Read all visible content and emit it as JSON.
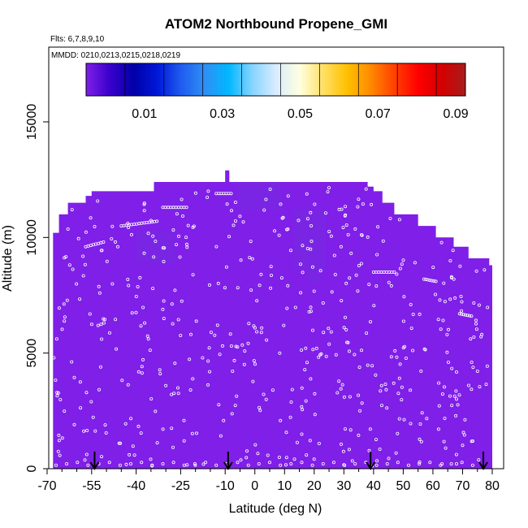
{
  "chart_data": {
    "type": "heatmap",
    "title": "ATOM2 Northbound Propene_GMI",
    "subtitle_flights": "Flts: 6,7,8,9,10",
    "subtitle_dates": "MMDD: 0210,0213,0215,0218,0219",
    "xlabel": "Latitude (deg N)",
    "ylabel": "Altitude (m)",
    "xlim": [
      -70,
      83
    ],
    "ylim": [
      0,
      17500
    ],
    "x_ticks": [
      -70,
      -55,
      -40,
      -25,
      -10,
      0,
      10,
      20,
      30,
      40,
      50,
      60,
      70,
      80
    ],
    "x_minor_ticks": [
      -65,
      -60,
      -50,
      -45,
      -35,
      -30,
      -20,
      -15,
      -5,
      5,
      15,
      25,
      35,
      45,
      55,
      65,
      75
    ],
    "y_ticks": [
      0,
      5000,
      10000,
      15000
    ],
    "colorbar": {
      "min": 0.0,
      "max": 0.1,
      "tick_values": [
        0.01,
        0.03,
        0.05,
        0.07,
        0.09
      ],
      "tick_labels": [
        "0.01",
        "0.03",
        "0.05",
        "0.07",
        "0.09"
      ],
      "colors": [
        "#7f1fe8",
        "#3a00cc",
        "#0000a8",
        "#0018d8",
        "#1f5cf0",
        "#2f8ff4",
        "#00b7ff",
        "#86d4ff",
        "#d8ecff",
        "#ffffe0",
        "#ffe066",
        "#ffc000",
        "#ff8a00",
        "#ff4000",
        "#ff0000",
        "#d40000",
        "#a81c1c"
      ]
    },
    "field_value": 0.0,
    "field_color": "#7f1fe8",
    "dark_patch_color": "#7a25e4",
    "top_profile": [
      {
        "lat": -68,
        "alt": 10200
      },
      {
        "lat": -66,
        "alt": 11000
      },
      {
        "lat": -63,
        "alt": 11500
      },
      {
        "lat": -57,
        "alt": 11800
      },
      {
        "lat": -55,
        "alt": 12000
      },
      {
        "lat": -34,
        "alt": 12400
      },
      {
        "lat": 38,
        "alt": 12200
      },
      {
        "lat": 40,
        "alt": 12000
      },
      {
        "lat": 43,
        "alt": 11500
      },
      {
        "lat": 47,
        "alt": 11000
      },
      {
        "lat": 55,
        "alt": 10500
      },
      {
        "lat": 61,
        "alt": 10000
      },
      {
        "lat": 67,
        "alt": 9600
      },
      {
        "lat": 72,
        "alt": 9100
      },
      {
        "lat": 79,
        "alt": 8800
      },
      {
        "lat": 80,
        "alt": 0
      }
    ],
    "dark_patches": [
      {
        "lat0": -40,
        "lat1": -27,
        "alt0": 8900,
        "alt1": 10300
      },
      {
        "lat0": -6,
        "lat1": 9,
        "alt0": 11200,
        "alt1": 12400
      },
      {
        "lat0": 13,
        "lat1": 24,
        "alt0": 8600,
        "alt1": 11200
      },
      {
        "lat0": 18,
        "lat1": 22,
        "alt0": 8000,
        "alt1": 8700
      }
    ],
    "sample_tracks": [
      {
        "lat0": -57,
        "alt0": 9600,
        "lat1": -51,
        "alt1": 9800
      },
      {
        "lat0": -45,
        "alt0": 10500,
        "lat1": -33,
        "alt1": 10700
      },
      {
        "lat0": -31,
        "alt0": 11300,
        "lat1": -23,
        "alt1": 11300
      },
      {
        "lat0": -13,
        "alt0": 11900,
        "lat1": -8,
        "alt1": 11900
      },
      {
        "lat0": 40,
        "alt0": 8500,
        "lat1": 47,
        "alt1": 8500
      },
      {
        "lat0": 57,
        "alt0": 8200,
        "lat1": 61,
        "alt1": 8100
      },
      {
        "lat0": 69,
        "alt0": 6700,
        "lat1": 73,
        "alt1": 6600
      }
    ],
    "flight_dates_marker_lats": [
      -54,
      -9,
      39,
      77
    ]
  }
}
